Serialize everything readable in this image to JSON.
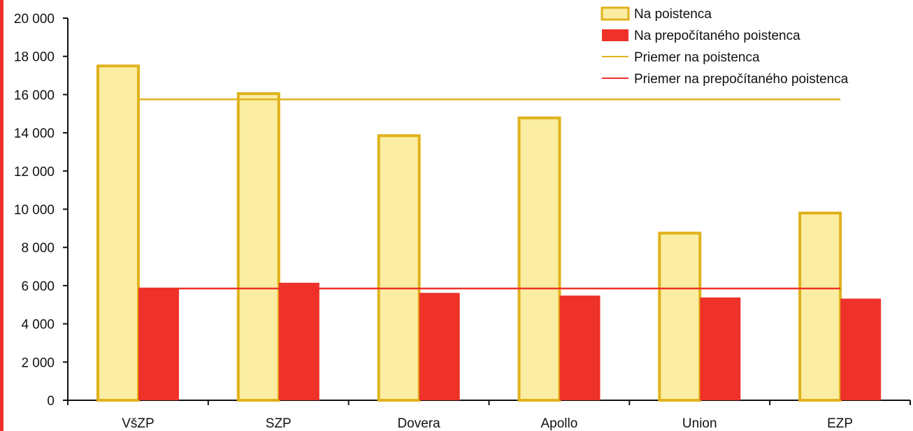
{
  "chart_data": {
    "type": "bar",
    "categories": [
      "VšZP",
      "SZP",
      "Dovera",
      "Apollo",
      "Union",
      "EZP"
    ],
    "series": [
      {
        "name": "Na poistenca",
        "values": [
          17500,
          16050,
          13850,
          14780,
          8750,
          9800
        ],
        "color": "#fbeda2",
        "stroke": "#e0b21c"
      },
      {
        "name": "Na prepočítaného poistenca",
        "values": [
          5880,
          6150,
          5620,
          5480,
          5380,
          5320
        ],
        "color": "#ee3129"
      }
    ],
    "reference_lines": [
      {
        "name": "Priemer na poistenca",
        "value": 15750,
        "color": "#e0b21c"
      },
      {
        "name": "Priemer na prepočítaného poistenca",
        "value": 5850,
        "color": "#ee3129"
      }
    ],
    "yticks": [
      "0",
      "2 000",
      "4 000",
      "6 000",
      "8 000",
      "10 000",
      "12 000",
      "14 000",
      "16 000",
      "18 000",
      "20 000"
    ],
    "ylim": [
      0,
      20000
    ],
    "title": "",
    "xlabel": "",
    "ylabel": "",
    "grid": false,
    "legend_position": "top-right",
    "accent_color": "#ee3129"
  }
}
